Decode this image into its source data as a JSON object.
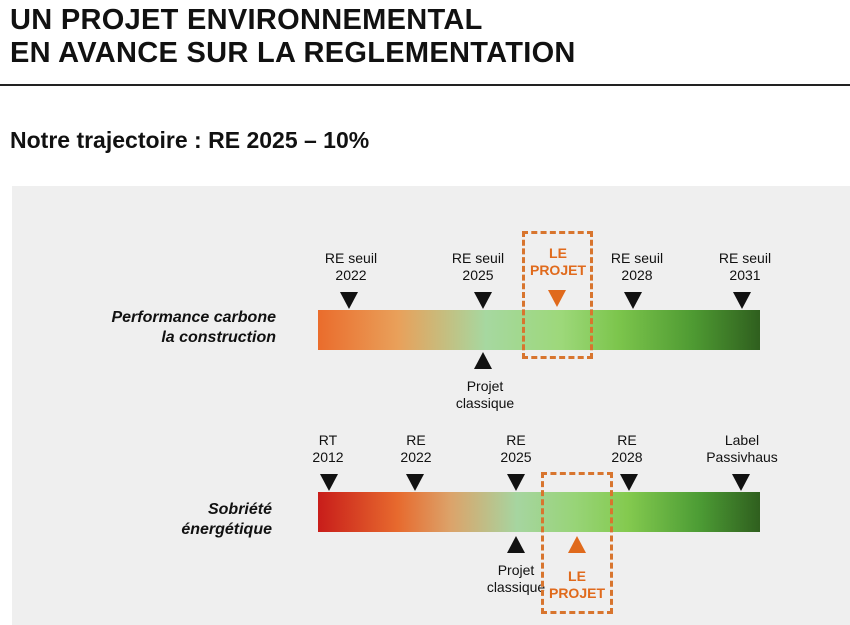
{
  "header": {
    "title_line1": "UN PROJET ENVIRONNEMENTAL",
    "title_line2": "EN AVANCE SUR LA REGLEMENTATION",
    "subtitle": "Notre trajectoire : RE 2025 – 10%"
  },
  "diagram": {
    "row1": {
      "label_line1": "Performance carbone",
      "label_line2": "la construction",
      "markers": [
        {
          "line1": "RE seuil",
          "line2": "2022"
        },
        {
          "line1": "RE seuil",
          "line2": "2025"
        },
        {
          "line1": "RE seuil",
          "line2": "2028"
        },
        {
          "line1": "RE seuil",
          "line2": "2031"
        }
      ],
      "projet_line1": "LE",
      "projet_line2": "PROJET",
      "classique_line1": "Projet",
      "classique_line2": "classique"
    },
    "row2": {
      "label_line1": "Sobriété",
      "label_line2": "énergétique",
      "markers": [
        {
          "line1": "RT",
          "line2": "2012"
        },
        {
          "line1": "RE",
          "line2": "2022"
        },
        {
          "line1": "RE",
          "line2": "2025"
        },
        {
          "line1": "RE",
          "line2": "2028"
        },
        {
          "line1": "Label",
          "line2": "Passivhaus"
        }
      ],
      "projet_line1": "LE",
      "projet_line2": "PROJET",
      "classique_line1": "Projet",
      "classique_line2": "classique"
    },
    "colors": {
      "projet": "#e06a1c",
      "bar_start_red": "#c81d1a",
      "bar_mid_green": "#9dd87a",
      "bar_end_green": "#2f5f1e",
      "panel": "#efefef"
    }
  }
}
